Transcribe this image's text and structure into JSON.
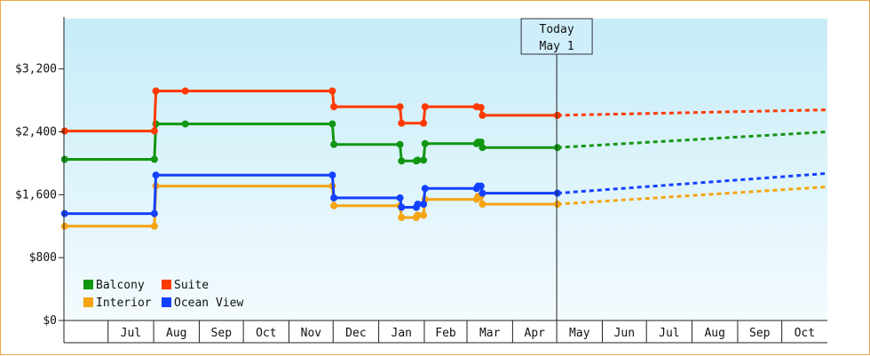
{
  "chart_data": {
    "type": "line",
    "title": "",
    "xlabel": "",
    "ylabel": "",
    "ylim": [
      0,
      3840
    ],
    "y_ticks": [
      0,
      800,
      1600,
      2400,
      3200
    ],
    "y_tick_labels": [
      "$0",
      "$800",
      "$1,600",
      "$2,400",
      "$3,200"
    ],
    "x_range": [
      "2023-06-01",
      "2024-10-31"
    ],
    "x_tick_labels": [
      "Jul",
      "Aug",
      "Sep",
      "Oct",
      "Nov",
      "Dec",
      "Jan",
      "Feb",
      "Mar",
      "Apr",
      "May",
      "Jun",
      "Jul",
      "Aug",
      "Sep",
      "Oct"
    ],
    "grid": false,
    "legend_placement": "bottom-left",
    "background_gradient": [
      "#c6ecf8",
      "#f4fbfe"
    ],
    "today_marker": {
      "date": "2024-05-01",
      "label_line1": "Today",
      "label_line2": "May 1"
    },
    "series": [
      {
        "name": "Balcony",
        "color": "#129612",
        "history": [
          [
            "2023-06-01",
            2050
          ],
          [
            "2023-08-01",
            2050
          ],
          [
            "2023-08-02",
            2500
          ],
          [
            "2023-08-22",
            2500
          ],
          [
            "2023-11-30",
            2500
          ],
          [
            "2023-12-01",
            2240
          ],
          [
            "2024-01-15",
            2240
          ],
          [
            "2024-01-16",
            2030
          ],
          [
            "2024-01-26",
            2030
          ],
          [
            "2024-01-27",
            2040
          ],
          [
            "2024-01-31",
            2040
          ],
          [
            "2024-02-01",
            2250
          ],
          [
            "2024-03-07",
            2250
          ],
          [
            "2024-03-08",
            2270
          ],
          [
            "2024-03-10",
            2270
          ],
          [
            "2024-03-11",
            2200
          ],
          [
            "2024-05-01",
            2200
          ]
        ],
        "forecast": [
          [
            "2024-05-01",
            2200
          ],
          [
            "2024-10-31",
            2400
          ]
        ]
      },
      {
        "name": "Suite",
        "color": "#ff3a00",
        "history": [
          [
            "2023-06-01",
            2410
          ],
          [
            "2023-08-01",
            2410
          ],
          [
            "2023-08-02",
            2920
          ],
          [
            "2023-08-22",
            2920
          ],
          [
            "2023-11-30",
            2920
          ],
          [
            "2023-12-01",
            2720
          ],
          [
            "2024-01-15",
            2720
          ],
          [
            "2024-01-16",
            2510
          ],
          [
            "2024-01-31",
            2510
          ],
          [
            "2024-02-01",
            2720
          ],
          [
            "2024-03-07",
            2720
          ],
          [
            "2024-03-10",
            2710
          ],
          [
            "2024-03-11",
            2610
          ],
          [
            "2024-05-01",
            2610
          ]
        ],
        "forecast": [
          [
            "2024-05-01",
            2610
          ],
          [
            "2024-10-31",
            2680
          ]
        ]
      },
      {
        "name": "Interior",
        "color": "#f5a412",
        "history": [
          [
            "2023-06-01",
            1200
          ],
          [
            "2023-08-01",
            1200
          ],
          [
            "2023-08-02",
            1710
          ],
          [
            "2023-11-30",
            1710
          ],
          [
            "2023-12-01",
            1460
          ],
          [
            "2024-01-15",
            1460
          ],
          [
            "2024-01-16",
            1310
          ],
          [
            "2024-01-26",
            1310
          ],
          [
            "2024-01-27",
            1340
          ],
          [
            "2024-01-31",
            1340
          ],
          [
            "2024-02-01",
            1540
          ],
          [
            "2024-03-07",
            1540
          ],
          [
            "2024-03-08",
            1580
          ],
          [
            "2024-03-10",
            1580
          ],
          [
            "2024-03-11",
            1480
          ],
          [
            "2024-05-01",
            1480
          ]
        ],
        "forecast": [
          [
            "2024-05-01",
            1480
          ],
          [
            "2024-10-31",
            1700
          ]
        ]
      },
      {
        "name": "Ocean View",
        "color": "#1440ff",
        "history": [
          [
            "2023-06-01",
            1360
          ],
          [
            "2023-08-01",
            1360
          ],
          [
            "2023-08-02",
            1850
          ],
          [
            "2023-11-30",
            1850
          ],
          [
            "2023-12-01",
            1560
          ],
          [
            "2024-01-15",
            1560
          ],
          [
            "2024-01-16",
            1440
          ],
          [
            "2024-01-26",
            1440
          ],
          [
            "2024-01-27",
            1480
          ],
          [
            "2024-01-31",
            1480
          ],
          [
            "2024-02-01",
            1680
          ],
          [
            "2024-03-07",
            1680
          ],
          [
            "2024-03-08",
            1710
          ],
          [
            "2024-03-10",
            1710
          ],
          [
            "2024-03-11",
            1620
          ],
          [
            "2024-05-01",
            1620
          ]
        ],
        "forecast": [
          [
            "2024-05-01",
            1620
          ],
          [
            "2024-10-31",
            1870
          ]
        ]
      }
    ]
  }
}
